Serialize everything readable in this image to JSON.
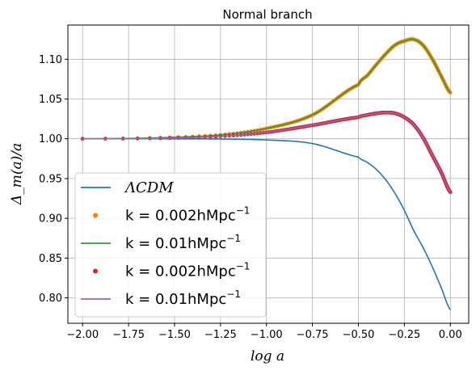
{
  "chart_data": {
    "type": "line",
    "title": "Normal branch",
    "xlabel": "log a",
    "ylabel": "Δ_m(a)/a",
    "xlim": [
      -2.08,
      0.1
    ],
    "ylim": [
      0.768,
      1.143
    ],
    "grid": true,
    "legend_position": "lower-left",
    "x_ticks": [
      -2.0,
      -1.75,
      -1.5,
      -1.25,
      -1.0,
      -0.75,
      -0.5,
      -0.25,
      0.0
    ],
    "x_tick_labels": [
      "−2.00",
      "−1.75",
      "−1.50",
      "−1.25",
      "−1.00",
      "−0.75",
      "−0.50",
      "−0.25",
      "0.00"
    ],
    "y_ticks": [
      0.8,
      0.85,
      0.9,
      0.95,
      1.0,
      1.05,
      1.1
    ],
    "y_tick_labels": [
      "0.80",
      "0.85",
      "0.90",
      "0.95",
      "1.00",
      "1.05",
      "1.10"
    ],
    "x": [
      -2.0,
      -1.75,
      -1.5,
      -1.25,
      -1.0,
      -0.75,
      -0.5,
      -0.45,
      -0.4,
      -0.35,
      -0.3,
      -0.25,
      -0.2,
      -0.15,
      -0.1,
      -0.05,
      0.0
    ],
    "series": [
      {
        "name": "ΛCDM",
        "style": "line",
        "color": "#1f77b4",
        "values": [
          1.0,
          1.0,
          0.9999,
          0.9997,
          0.9985,
          0.994,
          0.977,
          0.97,
          0.961,
          0.948,
          0.931,
          0.91,
          0.885,
          0.864,
          0.84,
          0.813,
          0.785
        ]
      },
      {
        "name": "k = 0.002hMpc⁻¹",
        "style": "dots",
        "color": "#ff7f0e",
        "values": [
          1.0,
          1.0005,
          1.002,
          1.005,
          1.013,
          1.03,
          1.068,
          1.08,
          1.094,
          1.107,
          1.118,
          1.123,
          1.125,
          1.118,
          1.101,
          1.079,
          1.058
        ]
      },
      {
        "name": "k = 0.01hMpc⁻¹",
        "style": "line",
        "color": "#2ca02c",
        "values": [
          1.0,
          1.0005,
          1.002,
          1.005,
          1.013,
          1.03,
          1.068,
          1.08,
          1.094,
          1.107,
          1.118,
          1.123,
          1.125,
          1.118,
          1.101,
          1.079,
          1.058
        ]
      },
      {
        "name": "k = 0.002hMpc⁻¹",
        "style": "dots",
        "color": "#d62728",
        "values": [
          1.0,
          1.0002,
          1.001,
          1.003,
          1.008,
          1.017,
          1.027,
          1.03,
          1.032,
          1.033,
          1.032,
          1.027,
          1.018,
          1.002,
          0.98,
          0.958,
          0.933
        ]
      },
      {
        "name": "k = 0.01hMpc⁻¹",
        "style": "line",
        "color": "#9467bd",
        "values": [
          1.0,
          1.0002,
          1.001,
          1.003,
          1.008,
          1.017,
          1.027,
          1.03,
          1.032,
          1.033,
          1.032,
          1.027,
          1.018,
          1.002,
          0.98,
          0.958,
          0.933
        ]
      }
    ],
    "legend": [
      {
        "label": "ΛCDM",
        "color": "#1f77b4",
        "style": "line"
      },
      {
        "label": "k = 0.002hMpc",
        "color": "#ff7f0e",
        "style": "dot"
      },
      {
        "label": "k = 0.01hMpc",
        "color": "#2ca02c",
        "style": "line"
      },
      {
        "label": "k = 0.002hMpc",
        "color": "#d62728",
        "style": "dot"
      },
      {
        "label": "k = 0.01hMpc",
        "color": "#9467bd",
        "style": "line"
      }
    ],
    "legend_superscript": "−1"
  }
}
